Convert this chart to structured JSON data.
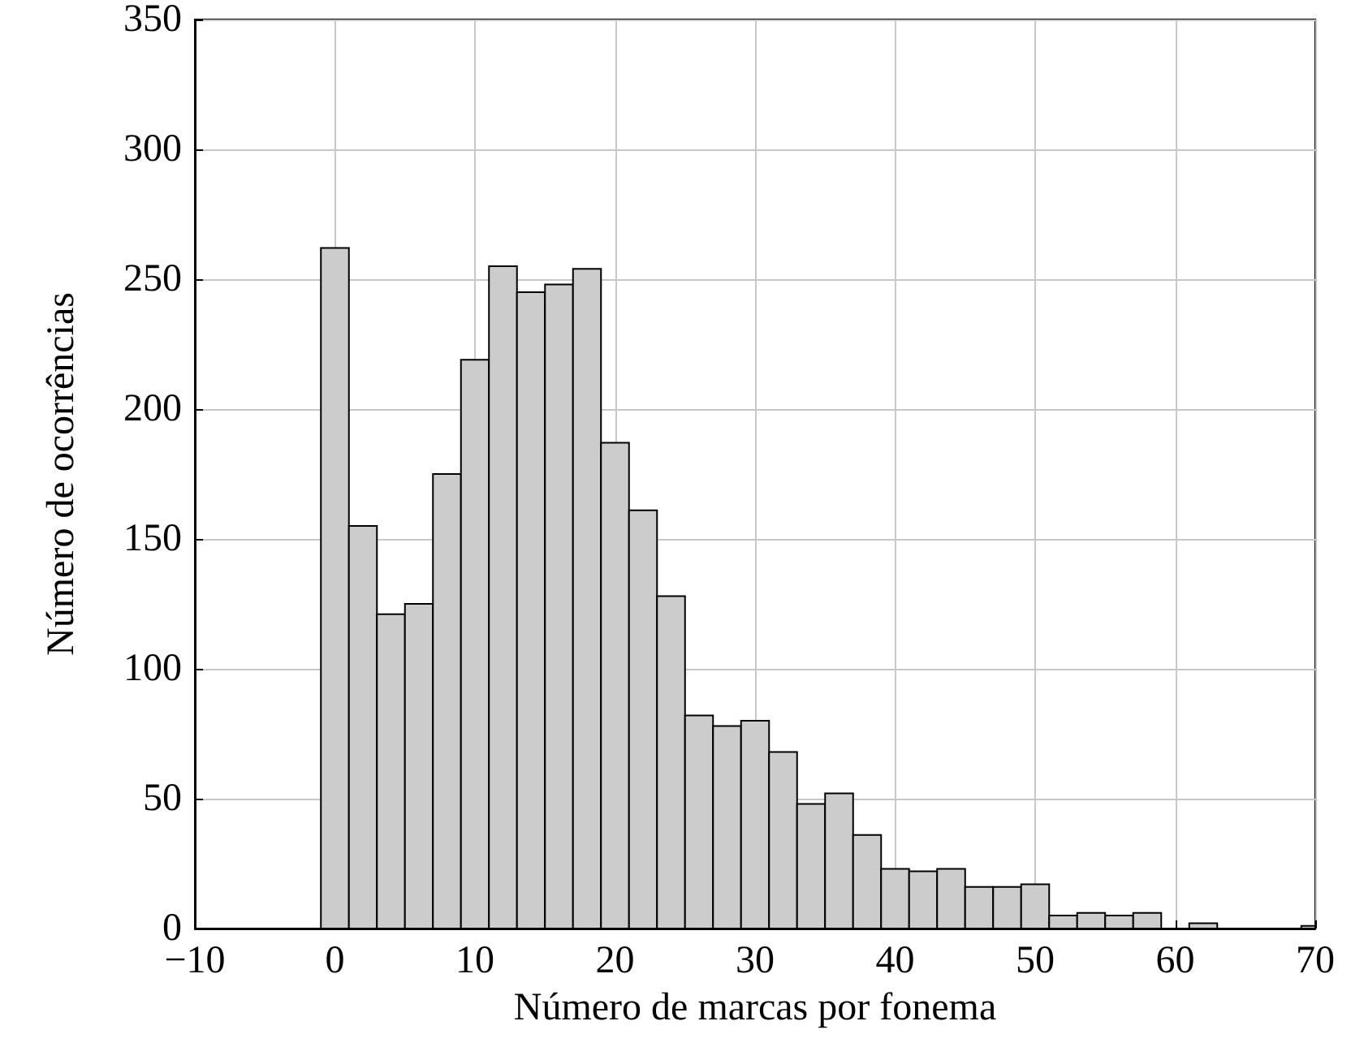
{
  "chart_data": {
    "type": "histogram",
    "xlabel": "Número de marcas por fonema",
    "ylabel": "Número de ocorrências",
    "bins": [
      -1,
      1,
      3,
      5,
      7,
      9,
      11,
      13,
      15,
      17,
      19,
      21,
      23,
      25,
      27,
      29,
      31,
      33,
      35,
      37,
      39,
      41,
      43,
      45,
      47,
      49,
      51,
      53,
      55,
      57,
      59,
      61,
      63,
      69,
      70
    ],
    "values": [
      262,
      155,
      121,
      125,
      175,
      219,
      255,
      245,
      248,
      254,
      187,
      161,
      128,
      82,
      78,
      80,
      68,
      48,
      52,
      36,
      23,
      22,
      23,
      16,
      16,
      17,
      5,
      6,
      5,
      6,
      0,
      2,
      0,
      1
    ],
    "color": "#cccccc",
    "xlim": [
      -10,
      70
    ],
    "xticks": [
      {
        "value": -10,
        "label": "−10"
      },
      0,
      10,
      20,
      30,
      40,
      50,
      60,
      70
    ],
    "ylim": [
      0,
      350
    ],
    "yticks": [
      0,
      50,
      100,
      150,
      200,
      250,
      300,
      350
    ],
    "grid": true
  }
}
